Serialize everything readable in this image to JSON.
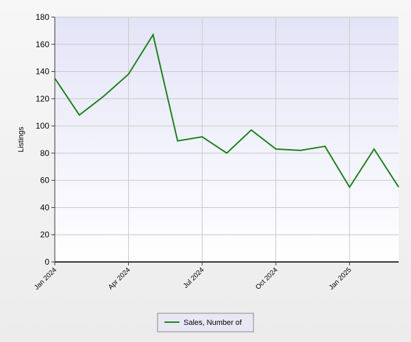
{
  "chart_data": {
    "type": "line",
    "y_label": "Listings",
    "categories": [
      "Jan 2024",
      null,
      null,
      "Apr 2024",
      null,
      null,
      "Jul 2024",
      null,
      null,
      "Oct 2024",
      null,
      null,
      "Jan 2025",
      null,
      null
    ],
    "series": [
      {
        "name": "Sales, Number of",
        "color": "#1a7f1a",
        "values": [
          135,
          108,
          122,
          138,
          167,
          89,
          92,
          80,
          97,
          83,
          82,
          85,
          55,
          83,
          55
        ]
      }
    ],
    "ylim": [
      0,
      180
    ],
    "yticks": [
      0,
      20,
      40,
      60,
      80,
      100,
      120,
      140,
      160,
      180
    ],
    "grid": true,
    "legend": "bottom"
  }
}
